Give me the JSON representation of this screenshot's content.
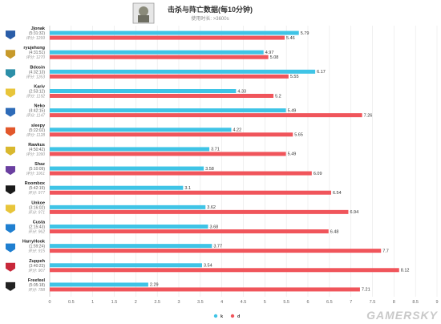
{
  "chart_data": {
    "type": "bar",
    "orientation": "horizontal",
    "title": "击杀与阵亡数据(每10分钟)",
    "subtitle": "使用时长: >3600s",
    "xlim": [
      0,
      9
    ],
    "xticks": [
      "0",
      "0.5",
      "1",
      "1.5",
      "2",
      "2.5",
      "3",
      "3.5",
      "4",
      "4.5",
      "5",
      "5.5",
      "6",
      "6.5",
      "7",
      "7.5",
      "8",
      "8.5",
      "9"
    ],
    "grid": true,
    "legend_position": "bottom-center",
    "series": [
      {
        "name": "k",
        "color": "#3fc4e6"
      },
      {
        "name": "d",
        "color": "#f0555b"
      }
    ],
    "players": [
      {
        "name": "Jjonak",
        "time": "(5:31:32)",
        "score": "评分: 1299",
        "k": 5.79,
        "d": 5.46,
        "logo_color": "#2a5da8"
      },
      {
        "name": "ryujehong",
        "time": "(4:31:51)",
        "score": "评分: 1270",
        "k": 4.97,
        "d": 5.08,
        "logo_color": "#c79a2b"
      },
      {
        "name": "Bdosin",
        "time": "(4:32:13)",
        "score": "评分: 1263",
        "k": 6.17,
        "d": 5.55,
        "logo_color": "#2c8fa8"
      },
      {
        "name": "Kariv",
        "time": "(2:53:12)",
        "score": "评分: 1192",
        "k": 4.33,
        "d": 5.2,
        "logo_color": "#e8c53a"
      },
      {
        "name": "Neko",
        "time": "(4:42:15)",
        "score": "评分: 1147",
        "k": 5.49,
        "d": 7.26,
        "logo_color": "#2e6bb8"
      },
      {
        "name": "sleepy",
        "time": "(5:22:02)",
        "score": "评分: 1128",
        "k": 4.22,
        "d": 5.65,
        "logo_color": "#e2572b"
      },
      {
        "name": "Rawkus",
        "time": "(4:50:42)",
        "score": "评分: 1090",
        "k": 3.71,
        "d": 5.49,
        "logo_color": "#d9b82e"
      },
      {
        "name": "Shaz",
        "time": "(5:10:09)",
        "score": "评分: 1061",
        "k": 3.58,
        "d": 6.09,
        "logo_color": "#6a3fa0"
      },
      {
        "name": "Roombox",
        "time": "(5:42:19)",
        "score": "评分: 977",
        "k": 3.1,
        "d": 6.54,
        "logo_color": "#1a1a1a"
      },
      {
        "name": "Unkoe",
        "time": "(3:16:02)",
        "score": "评分: 971",
        "k": 3.62,
        "d": 6.94,
        "logo_color": "#e8c53a"
      },
      {
        "name": "Custa",
        "time": "(2:15:43)",
        "score": "评分: 962",
        "k": 3.68,
        "d": 6.48,
        "logo_color": "#1f7fd0"
      },
      {
        "name": "HarryHook",
        "time": "(1:59:24)",
        "score": "评分: 915",
        "k": 3.77,
        "d": 7.7,
        "logo_color": "#1f7fd0"
      },
      {
        "name": "Zuppeh",
        "time": "(3:40:23)",
        "score": "评分: 907",
        "k": 3.54,
        "d": 8.12,
        "logo_color": "#c8283a"
      },
      {
        "name": "Freefeel",
        "time": "(5:05:18)",
        "score": "评分: 788",
        "k": 2.29,
        "d": 7.21,
        "logo_color": "#222222"
      }
    ]
  },
  "watermark": "GAMERSKY",
  "hero_icon": "soldier-portrait-icon"
}
